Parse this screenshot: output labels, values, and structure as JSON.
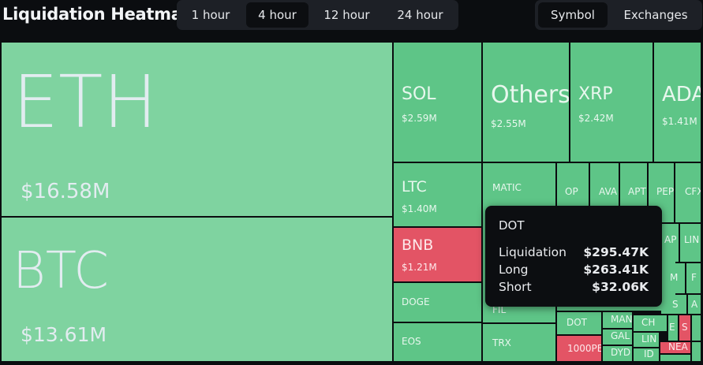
{
  "header": {
    "title": "Liquidation Heatmap",
    "timeframes": [
      "1 hour",
      "4 hour",
      "12 hour",
      "24 hour"
    ],
    "active_timeframe": "4 hour",
    "views": [
      "Symbol",
      "Exchanges"
    ],
    "active_view": "Symbol"
  },
  "colors": {
    "long": "#5ec587",
    "short": "#e35465",
    "background": "#0b0d10"
  },
  "cells": {
    "eth": {
      "name": "ETH",
      "value": "$16.58M"
    },
    "btc": {
      "name": "BTC",
      "value": "$13.61M"
    },
    "sol": {
      "name": "SOL",
      "value": "$2.59M"
    },
    "others": {
      "name": "Others",
      "value": "$2.55M"
    },
    "xrp": {
      "name": "XRP",
      "value": "$2.42M"
    },
    "ada": {
      "name": "ADA",
      "value": "$1.41M"
    },
    "ltc": {
      "name": "LTC",
      "value": "$1.40M"
    },
    "bnb": {
      "name": "BNB",
      "value": "$1.21M"
    },
    "doge": {
      "name": "DOGE"
    },
    "eos": {
      "name": "EOS"
    },
    "matic": {
      "name": "MATIC"
    },
    "op": {
      "name": "OP"
    },
    "ava": {
      "name": "AVA"
    },
    "apt": {
      "name": "APT"
    },
    "pep": {
      "name": "PEP"
    },
    "cfx": {
      "name": "CFX"
    },
    "fil": {
      "name": "FIL"
    },
    "trx": {
      "name": "TRX"
    },
    "dot": {
      "name": "DOT"
    },
    "k1000pe": {
      "name": "1000PE"
    },
    "ap": {
      "name": "AP"
    },
    "lin": {
      "name": "LIN"
    },
    "m": {
      "name": "M"
    },
    "f": {
      "name": "F"
    },
    "s": {
      "name": "S"
    },
    "a": {
      "name": "A"
    },
    "man": {
      "name": "MAN"
    },
    "gal": {
      "name": "GAL"
    },
    "dyd": {
      "name": "DYD"
    },
    "ch": {
      "name": "CH"
    },
    "e": {
      "name": "E"
    },
    "s2": {
      "name": "S"
    },
    "lin2": {
      "name": "LIN"
    },
    "nea": {
      "name": "NEA"
    },
    "id": {
      "name": "ID"
    }
  },
  "tooltip": {
    "symbol": "DOT",
    "rows": [
      {
        "label": "Liquidation",
        "value": "$295.47K"
      },
      {
        "label": "Long",
        "value": "$263.41K"
      },
      {
        "label": "Short",
        "value": "$32.06K"
      }
    ]
  }
}
